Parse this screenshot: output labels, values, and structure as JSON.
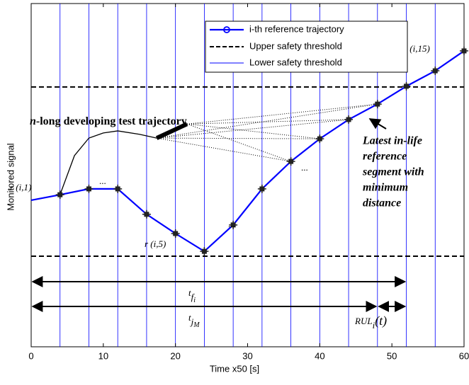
{
  "chart_data": {
    "type": "line",
    "x_label": "Time x50 [s]",
    "y_label": "Monitored signal",
    "xlim": [
      0,
      60
    ],
    "xticks": [
      0,
      10,
      20,
      30,
      40,
      50,
      60
    ],
    "ylim": [
      0,
      100
    ],
    "vertical_lines": [
      4,
      8,
      12,
      16,
      20,
      24,
      28,
      32,
      36,
      40,
      44,
      48,
      52,
      56
    ],
    "series": [
      {
        "name": "i-th reference trajectory",
        "color": "#0000ff",
        "x": [
          0,
          4,
          8,
          12,
          16,
          20,
          24,
          28,
          32,
          36,
          40,
          44,
          48,
          52,
          56,
          60
        ],
        "values": [
          42.7,
          44.3,
          46.0,
          46.0,
          38.6,
          33.0,
          27.8,
          35.5,
          46.0,
          54.0,
          60.6,
          66.2,
          70.7,
          75.9,
          80.4,
          86.2
        ]
      },
      {
        "name": "Upper safety threshold",
        "color": "#000000",
        "value": 75.7
      },
      {
        "name": "Lower safety threshold",
        "color": "#0000ff",
        "value": 26.4
      }
    ],
    "test_trajectory": {
      "x": [
        4,
        6,
        8,
        10,
        12,
        15,
        17.4
      ],
      "values": [
        44.3,
        55.7,
        60.8,
        62.3,
        62.9,
        61.9,
        60.8
      ],
      "segment_x": [
        17.4,
        21.6
      ],
      "segment_values": [
        60.8,
        64.9
      ],
      "color": "#000000"
    },
    "lower_dashed_value": 26.4,
    "annotations": {
      "r1": "r (i,1)",
      "r5": "r (i,5)",
      "r15": "r (i,15)",
      "dots": "...",
      "test_label_n": "n",
      "test_label": "-long developing test trajectory",
      "latest": [
        "Latest in-life",
        "reference",
        "segment with",
        "minimum",
        "distance"
      ],
      "tf": {
        "base": "t",
        "sub": "f",
        "subsub": "i",
        "end": 52
      },
      "tj": {
        "base": "t",
        "sub": "j",
        "subsub": "M",
        "end": 48
      },
      "rul": {
        "base": "RUL",
        "sub": "i",
        "arg": "(t)",
        "start": 48,
        "end": 52
      }
    }
  }
}
